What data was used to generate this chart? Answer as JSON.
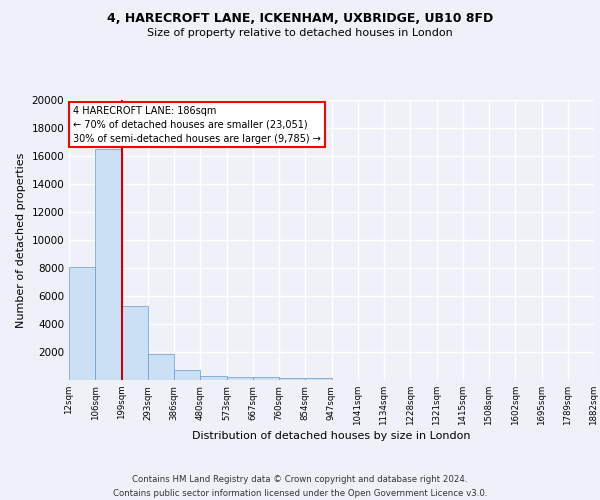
{
  "title1": "4, HARECROFT LANE, ICKENHAM, UXBRIDGE, UB10 8FD",
  "title2": "Size of property relative to detached houses in London",
  "xlabel": "Distribution of detached houses by size in London",
  "ylabel": "Number of detached properties",
  "bar_values": [
    8100,
    16500,
    5300,
    1850,
    700,
    300,
    220,
    180,
    150,
    130,
    0,
    0,
    0,
    0,
    0,
    0,
    0,
    0,
    0,
    0
  ],
  "x_labels": [
    "12sqm",
    "106sqm",
    "199sqm",
    "293sqm",
    "386sqm",
    "480sqm",
    "573sqm",
    "667sqm",
    "760sqm",
    "854sqm",
    "947sqm",
    "1041sqm",
    "1134sqm",
    "1228sqm",
    "1321sqm",
    "1415sqm",
    "1508sqm",
    "1602sqm",
    "1695sqm",
    "1789sqm",
    "1882sqm"
  ],
  "bar_color": "#cce0f5",
  "bar_edge_color": "#6699cc",
  "red_line_bin": 2,
  "annotation_text": "4 HARECROFT LANE: 186sqm\n← 70% of detached houses are smaller (23,051)\n30% of semi-detached houses are larger (9,785) →",
  "annotation_box_color": "white",
  "annotation_box_edge_color": "red",
  "red_line_color": "#cc0000",
  "ylim": [
    0,
    20000
  ],
  "yticks": [
    0,
    2000,
    4000,
    6000,
    8000,
    10000,
    12000,
    14000,
    16000,
    18000,
    20000
  ],
  "footer_text": "Contains HM Land Registry data © Crown copyright and database right 2024.\nContains public sector information licensed under the Open Government Licence v3.0.",
  "bg_color": "#eef2f8",
  "grid_color": "#ffffff"
}
